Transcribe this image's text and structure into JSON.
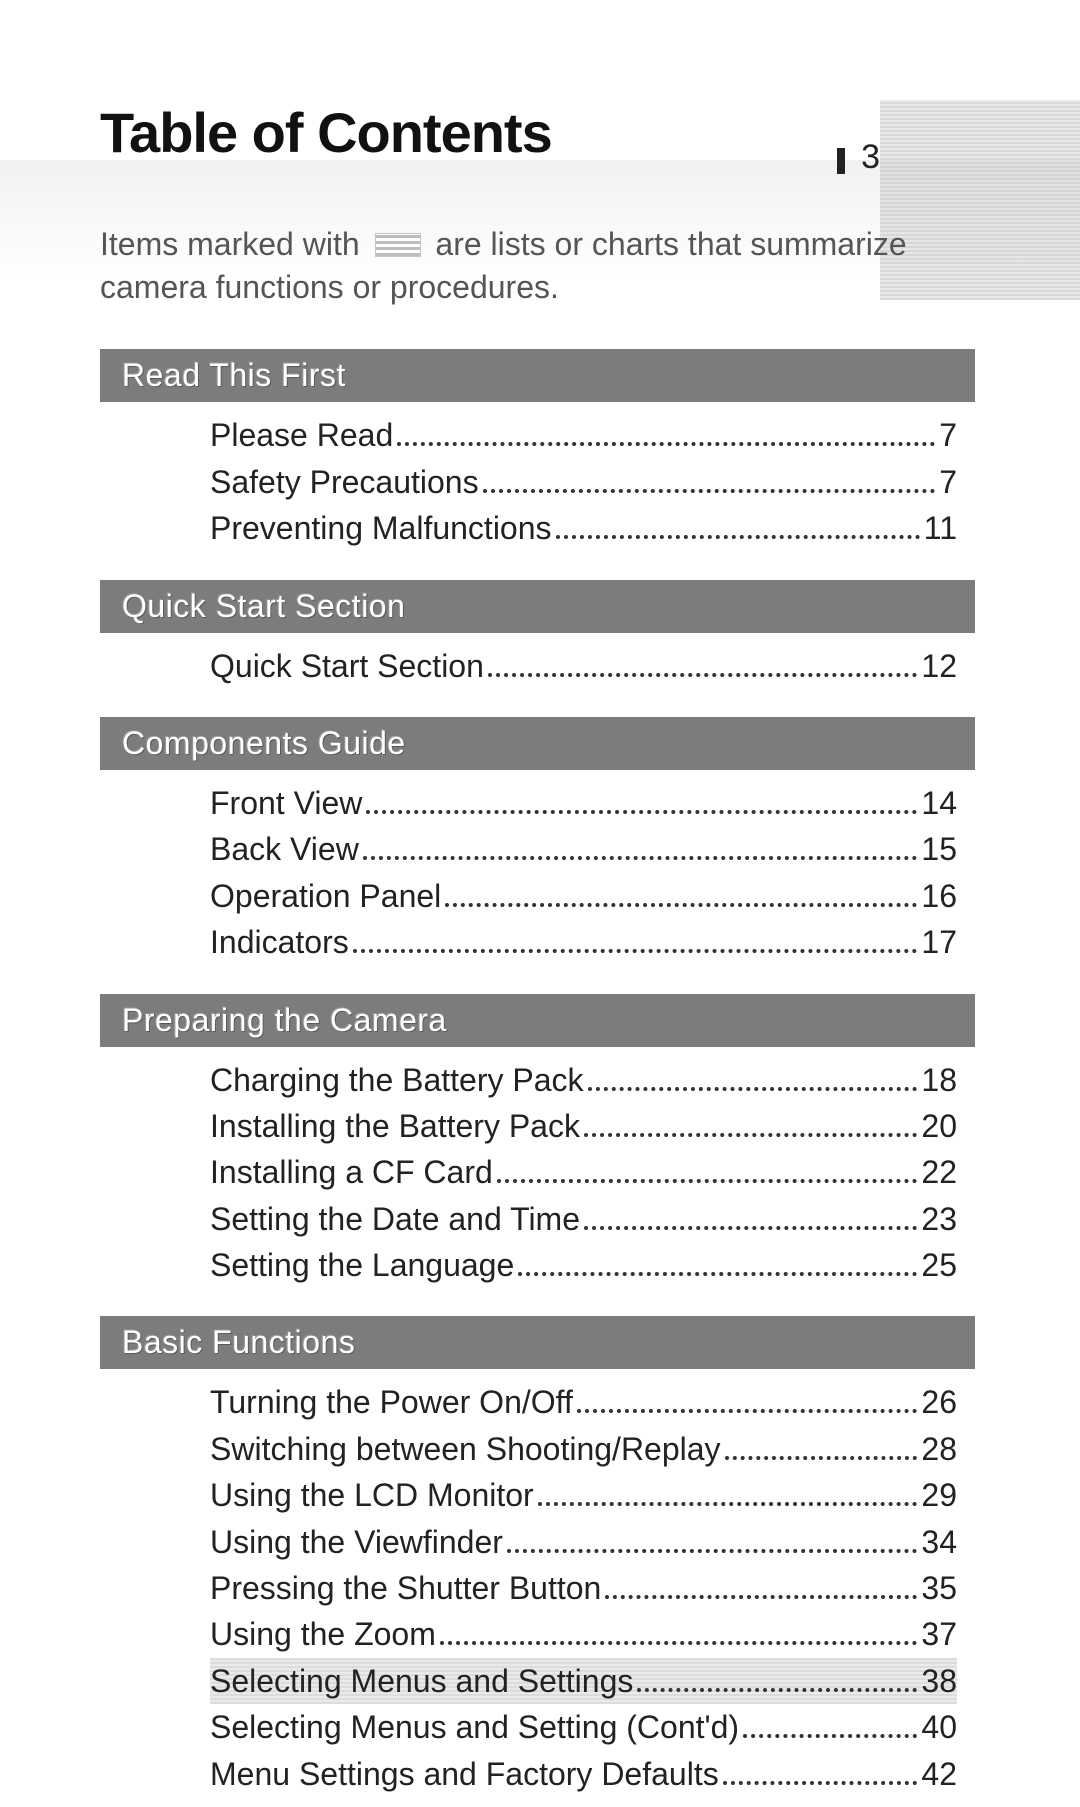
{
  "page_number": "3",
  "title": "Table of Contents",
  "intro_before_icon": "Items marked with",
  "intro_after_icon": "are lists or charts that summarize camera functions or procedures.",
  "sections": [
    {
      "heading": "Read This First",
      "items": [
        {
          "label": "Please Read",
          "page": "7",
          "highlight": false
        },
        {
          "label": "Safety Precautions",
          "page": "7",
          "highlight": false
        },
        {
          "label": "Preventing Malfunctions",
          "page": "11",
          "highlight": false
        }
      ]
    },
    {
      "heading": "Quick Start Section",
      "items": [
        {
          "label": "Quick Start Section",
          "page": "12",
          "highlight": false
        }
      ]
    },
    {
      "heading": "Components Guide",
      "items": [
        {
          "label": "Front View",
          "page": "14",
          "highlight": false
        },
        {
          "label": "Back View",
          "page": "15",
          "highlight": false
        },
        {
          "label": "Operation Panel",
          "page": "16",
          "highlight": false
        },
        {
          "label": "Indicators",
          "page": "17",
          "highlight": false
        }
      ]
    },
    {
      "heading": "Preparing the Camera",
      "items": [
        {
          "label": "Charging the Battery Pack",
          "page": "18",
          "highlight": false
        },
        {
          "label": "Installing the Battery Pack",
          "page": "20",
          "highlight": false
        },
        {
          "label": "Installing a CF Card",
          "page": "22",
          "highlight": false
        },
        {
          "label": "Setting the Date and Time",
          "page": "23",
          "highlight": false
        },
        {
          "label": "Setting the Language",
          "page": "25",
          "highlight": false
        }
      ]
    },
    {
      "heading": "Basic Functions",
      "items": [
        {
          "label": "Turning the Power On/Off",
          "page": "26",
          "highlight": false
        },
        {
          "label": "Switching between Shooting/Replay",
          "page": "28",
          "highlight": false
        },
        {
          "label": "Using the LCD Monitor",
          "page": "29",
          "highlight": false
        },
        {
          "label": "Using the Viewfinder",
          "page": "34",
          "highlight": false
        },
        {
          "label": "Pressing the Shutter Button",
          "page": "35",
          "highlight": false
        },
        {
          "label": "Using the Zoom",
          "page": "37",
          "highlight": false
        },
        {
          "label": "Selecting Menus and Settings",
          "page": "38",
          "highlight": true
        },
        {
          "label": "Selecting Menus and Setting (Cont'd)",
          "page": "40",
          "highlight": false
        },
        {
          "label": "Menu Settings and Factory Defaults",
          "page": "42",
          "highlight": false
        }
      ]
    }
  ],
  "colors": {
    "section_bar_bg": "#7c7c7c",
    "section_bar_text": "#ffffff",
    "body_text": "#222222",
    "intro_text": "#555555",
    "highlight_bg": "#e0e0e0"
  }
}
